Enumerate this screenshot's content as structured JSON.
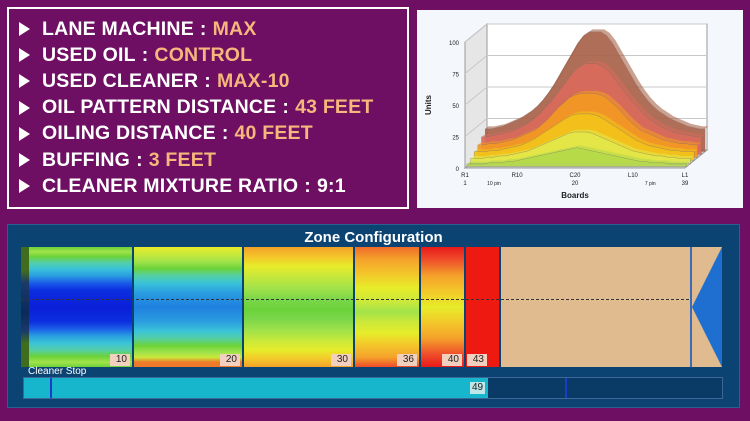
{
  "specs": [
    {
      "label": "LANE MACHINE",
      "value": "MAX"
    },
    {
      "label": "USED OIL",
      "value": "CONTROL"
    },
    {
      "label": "USED CLEANER",
      "value": "MAX-10"
    },
    {
      "label": "OIL PATTERN DISTANCE",
      "value": "43 FEET"
    },
    {
      "label": "OILING DISTANCE",
      "value": "40 FEET"
    },
    {
      "label": "BUFFING",
      "value": "3 FEET"
    },
    {
      "label": "CLEANER MIXTURE RATIO",
      "value": "9:1"
    }
  ],
  "separator": ":",
  "chart_data": {
    "type": "area",
    "xlabel": "Boards",
    "ylabel": "Units",
    "ylim": [
      0,
      100
    ],
    "yticks": [
      "0",
      "25",
      "50",
      "75",
      "100"
    ],
    "x_tick_labels": [
      "R1",
      "R10",
      "C20",
      "L10",
      "L1"
    ],
    "x_number_labels": [
      "1",
      "20",
      "39"
    ],
    "pin_labels": [
      "10 pin",
      "7 pin"
    ],
    "boards": [
      1,
      2,
      3,
      4,
      5,
      6,
      7,
      8,
      9,
      10,
      11,
      12,
      13,
      14,
      15,
      16,
      17,
      18,
      19,
      20,
      21,
      22,
      23,
      24,
      25,
      26,
      27,
      28,
      29,
      30,
      31,
      32,
      33,
      34,
      35,
      36,
      37,
      38,
      39
    ],
    "series": [
      {
        "color": "#b3d94a",
        "values": [
          2,
          2,
          2,
          2,
          3,
          3,
          3,
          4,
          4,
          5,
          6,
          7,
          8,
          9,
          10,
          11,
          12,
          13,
          14,
          15,
          14,
          13,
          12,
          11,
          10,
          9,
          8,
          7,
          6,
          5,
          4,
          4,
          3,
          3,
          3,
          2,
          2,
          2,
          2
        ]
      },
      {
        "color": "#e3e84a",
        "values": [
          4,
          4,
          4,
          5,
          5,
          6,
          6,
          7,
          8,
          9,
          10,
          12,
          14,
          16,
          18,
          20,
          22,
          24,
          25,
          25,
          25,
          24,
          22,
          20,
          18,
          16,
          14,
          12,
          10,
          9,
          8,
          7,
          6,
          6,
          5,
          5,
          4,
          4,
          4
        ]
      },
      {
        "color": "#f2c21a",
        "values": [
          7,
          7,
          7,
          8,
          8,
          9,
          10,
          11,
          12,
          14,
          16,
          19,
          22,
          25,
          28,
          31,
          34,
          36,
          37,
          37,
          37,
          36,
          34,
          31,
          28,
          25,
          22,
          19,
          16,
          14,
          12,
          11,
          10,
          9,
          8,
          8,
          7,
          7,
          7
        ]
      },
      {
        "color": "#f39a22",
        "values": [
          10,
          10,
          11,
          11,
          12,
          13,
          14,
          16,
          18,
          20,
          22,
          26,
          30,
          35,
          40,
          44,
          48,
          50,
          51,
          51,
          51,
          50,
          48,
          44,
          40,
          35,
          30,
          26,
          22,
          20,
          18,
          16,
          14,
          13,
          12,
          11,
          11,
          10,
          10
        ]
      },
      {
        "color": "#d96a5c",
        "values": [
          14,
          14,
          15,
          16,
          17,
          18,
          20,
          22,
          25,
          28,
          32,
          37,
          42,
          48,
          54,
          60,
          66,
          70,
          72,
          72,
          72,
          70,
          66,
          60,
          54,
          48,
          42,
          37,
          32,
          28,
          25,
          22,
          20,
          18,
          17,
          16,
          15,
          14,
          14
        ]
      },
      {
        "color": "#a8624a",
        "values": [
          18,
          18,
          19,
          20,
          22,
          24,
          26,
          29,
          32,
          36,
          41,
          47,
          54,
          62,
          70,
          78,
          86,
          92,
          95,
          95,
          95,
          92,
          86,
          78,
          70,
          62,
          54,
          47,
          41,
          36,
          32,
          29,
          26,
          24,
          22,
          20,
          19,
          18,
          18
        ]
      }
    ]
  },
  "zone_config": {
    "title": "Zone Configuration",
    "distances": [
      "10",
      "20",
      "30",
      "36",
      "40",
      "43"
    ],
    "cleaner_label": "Cleaner Stop",
    "cleaner_value": "49",
    "cleaner_fraction": 0.665
  }
}
